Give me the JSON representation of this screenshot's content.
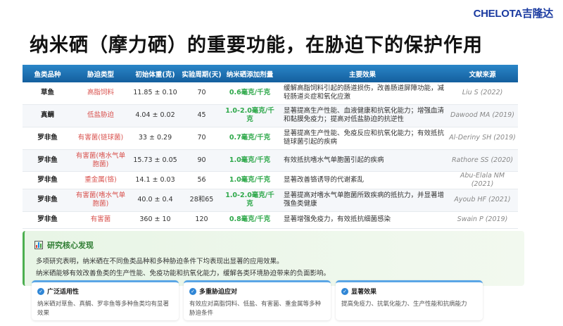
{
  "logo": "CHELOTA吉隆达",
  "title": "纳米硒（摩力硒）的重要功能，在胁迫下的保护作用",
  "table": {
    "headers": [
      "鱼类品种",
      "胁迫类型",
      "初始体重(克)",
      "实验周期(天)",
      "纳米硒添加剂量",
      "主要效果",
      "文献来源"
    ],
    "rows": [
      [
        "草鱼",
        "高脂饲料",
        "11.85 ± 0.10",
        "70",
        "0.6毫克/千克",
        "缓解高脂饲料引起的肠道损伤，改善肠道屏障功能，减轻肠道炎症和氧化应激",
        "Liu S (2022)"
      ],
      [
        "真鲷",
        "低盐胁迫",
        "4.04 ± 0.02",
        "45",
        "1.0-2.0毫克/千克",
        "显著提高生产性能、血液健康和抗氧化能力；增强血清和黏膜免疫力；提高对低盐胁迫的抗逆性",
        "Dawood MA (2019)"
      ],
      [
        "罗非鱼",
        "有害菌(链球菌)",
        "33 ± 0.29",
        "70",
        "0.7毫克/千克",
        "显著提高生产性能、免疫反应和抗氧化能力；有效抵抗链球菌引起的疾病",
        "Al-Deriny SH (2019)"
      ],
      [
        "罗非鱼",
        "有害菌(嗜水气单胞菌)",
        "15.73 ± 0.05",
        "90",
        "1.0毫克/千克",
        "有效抵抗嗜水气单胞菌引起的疾病",
        "Rathore SS (2020)"
      ],
      [
        "罗非鱼",
        "重金属(铬)",
        "14.1 ± 0.03",
        "56",
        "1.0毫克/千克",
        "显著改善铬诱导的代谢紊乱",
        "Abu-Elala NM (2021)"
      ],
      [
        "罗非鱼",
        "有害菌(嗜水气单胞菌)",
        "40.0 ± 0.4",
        "28和65",
        "1.0-2.0毫克/千克",
        "显著提高对嗜水气单胞菌所致疾病的抵抗力，并显著增强鱼类健康",
        "Ayoub HF (2021)"
      ],
      [
        "罗非鱼",
        "有害菌",
        "360 ± 10",
        "120",
        "0.8毫克/千克",
        "显著增强免疫力，有效抵抗细菌感染",
        "Swain P (2019)"
      ]
    ]
  },
  "summary": {
    "title": "研究核心发现",
    "p1": "多项研究表明，纳米硒在不同鱼类品种和多种胁迫条件下均表现出显著的应用效果。",
    "p2": "纳米硒能够有效改善鱼类的生产性能、免疫功能和抗氧化能力，缓解各类环境胁迫带来的负面影响。"
  },
  "cards": [
    {
      "title": "广泛适用性",
      "body": "纳米硒对草鱼、真鲷、罗非鱼等多种鱼类均有显著效果"
    },
    {
      "title": "多重胁迫应对",
      "body": "有效应对高脂饲料、低盐、有害菌、重金属等多种胁迫条件"
    },
    {
      "title": "显著效果",
      "body": "提高免疫力、抗氧化能力、生产性能和抗病能力"
    }
  ],
  "colors": {
    "header": "#1f73b7",
    "dose": "#2ea84a",
    "stress": "#d9534f",
    "accent": "#4caf50"
  }
}
